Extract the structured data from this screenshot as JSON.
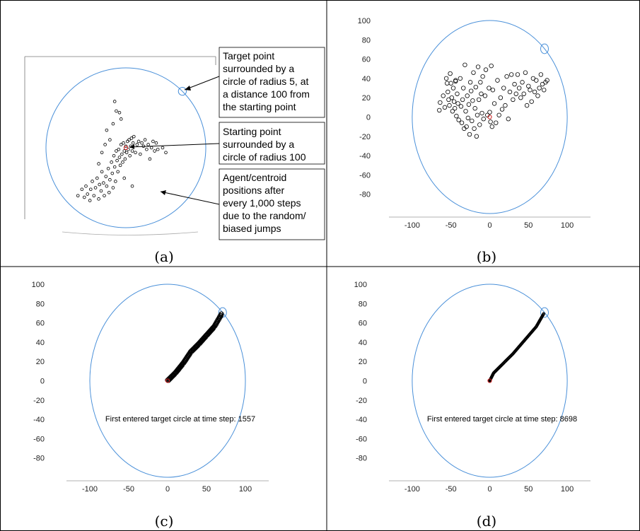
{
  "chart_data": [
    {
      "panel": "a",
      "type": "scatter",
      "caption": "(a)",
      "annotations": [
        {
          "lines": [
            "Target point",
            "surrounded by a",
            "circle of radius 5, at",
            "a distance 100 from",
            "the starting point"
          ]
        },
        {
          "lines": [
            "Starting point",
            "surrounded by a",
            "circle of radius 100"
          ]
        },
        {
          "lines": [
            "Agent/centroid",
            "positions after",
            "every 1,000 steps",
            "due to the random/",
            "biased jumps"
          ]
        }
      ],
      "start_circle": {
        "center": [
          0,
          0
        ],
        "radius": 100
      },
      "target_circle": {
        "center": [
          70.7,
          70.7
        ],
        "radius": 5
      },
      "points": [
        [
          -60,
          -60
        ],
        [
          -55,
          -52
        ],
        [
          -52,
          -62
        ],
        [
          -50,
          -48
        ],
        [
          -48,
          -58
        ],
        [
          -45,
          -66
        ],
        [
          -44,
          -52
        ],
        [
          -42,
          -42
        ],
        [
          -40,
          -60
        ],
        [
          -38,
          -50
        ],
        [
          -36,
          -38
        ],
        [
          -34,
          -64
        ],
        [
          -33,
          -46
        ],
        [
          -31,
          -54
        ],
        [
          -30,
          -30
        ],
        [
          -28,
          -44
        ],
        [
          -27,
          -60
        ],
        [
          -25,
          -36
        ],
        [
          -24,
          -48
        ],
        [
          -22,
          -26
        ],
        [
          -21,
          -56
        ],
        [
          -20,
          -40
        ],
        [
          -18,
          -18
        ],
        [
          -17,
          -32
        ],
        [
          -16,
          -50
        ],
        [
          -15,
          -10
        ],
        [
          -14,
          -24
        ],
        [
          -13,
          -42
        ],
        [
          -12,
          -4
        ],
        [
          -11,
          -16
        ],
        [
          -10,
          -30
        ],
        [
          -9,
          -2
        ],
        [
          -8,
          -12
        ],
        [
          -7,
          -22
        ],
        [
          -6,
          4
        ],
        [
          -5,
          -8
        ],
        [
          -4,
          -18
        ],
        [
          -3,
          6
        ],
        [
          -2,
          -4
        ],
        [
          -1,
          -14
        ],
        [
          0,
          2
        ],
        [
          1,
          -6
        ],
        [
          2,
          8
        ],
        [
          3,
          -2
        ],
        [
          4,
          10
        ],
        [
          5,
          -10
        ],
        [
          6,
          2
        ],
        [
          7,
          12
        ],
        [
          8,
          -4
        ],
        [
          9,
          6
        ],
        [
          10,
          14
        ],
        [
          12,
          -6
        ],
        [
          14,
          4
        ],
        [
          16,
          8
        ],
        [
          18,
          -8
        ],
        [
          20,
          6
        ],
        [
          22,
          2
        ],
        [
          24,
          10
        ],
        [
          26,
          -2
        ],
        [
          28,
          4
        ],
        [
          30,
          -14
        ],
        [
          32,
          0
        ],
        [
          34,
          8
        ],
        [
          36,
          -4
        ],
        [
          38,
          6
        ],
        [
          40,
          -2
        ],
        [
          46,
          0
        ],
        [
          50,
          -6
        ],
        [
          -2,
          -38
        ],
        [
          8,
          -48
        ],
        [
          -14,
          58
        ],
        [
          -8,
          44
        ],
        [
          -6,
          36
        ],
        [
          -16,
          30
        ],
        [
          -12,
          46
        ],
        [
          -24,
          22
        ],
        [
          -20,
          10
        ],
        [
          -26,
          4
        ],
        [
          -30,
          -6
        ],
        [
          -34,
          -20
        ]
      ],
      "start_point": [
        0,
        0
      ]
    },
    {
      "panel": "b",
      "type": "scatter",
      "caption": "(b)",
      "xlim": [
        -130,
        130
      ],
      "ylim": [
        -100,
        100
      ],
      "xticks": [
        "-100",
        "-50",
        "0",
        "50",
        "100"
      ],
      "yticks": [
        "100",
        "80",
        "60",
        "40",
        "20",
        "0",
        "-20",
        "-40",
        "-60",
        "-80"
      ],
      "start_circle": {
        "center": [
          0,
          0
        ],
        "radius": 100
      },
      "target_circle": {
        "center": [
          70.7,
          70.7
        ],
        "radius": 5
      },
      "points": [
        [
          -65,
          7
        ],
        [
          -64,
          15
        ],
        [
          -60,
          22
        ],
        [
          -58,
          10
        ],
        [
          -56,
          40
        ],
        [
          -55,
          35
        ],
        [
          -54,
          26
        ],
        [
          -53,
          18
        ],
        [
          -52,
          12
        ],
        [
          -51,
          45
        ],
        [
          -50,
          35
        ],
        [
          -49,
          20
        ],
        [
          -48,
          6
        ],
        [
          -47,
          30
        ],
        [
          -46,
          16
        ],
        [
          -45,
          9
        ],
        [
          -44,
          38
        ],
        [
          -43,
          1
        ],
        [
          -42,
          24
        ],
        [
          -41,
          14
        ],
        [
          -40,
          -3
        ],
        [
          -38,
          40
        ],
        [
          -37,
          11
        ],
        [
          -36,
          -6
        ],
        [
          -35,
          18
        ],
        [
          -34,
          30
        ],
        [
          -33,
          -12
        ],
        [
          -32,
          54
        ],
        [
          -31,
          6
        ],
        [
          -30,
          -10
        ],
        [
          -29,
          22
        ],
        [
          -28,
          -1
        ],
        [
          -27,
          13
        ],
        [
          -26,
          -18
        ],
        [
          -25,
          36
        ],
        [
          -24,
          27
        ],
        [
          -23,
          -4
        ],
        [
          -22,
          17
        ],
        [
          -21,
          46
        ],
        [
          -20,
          -12
        ],
        [
          -19,
          9
        ],
        [
          -18,
          31
        ],
        [
          -17,
          -20
        ],
        [
          -16,
          2
        ],
        [
          -15,
          52
        ],
        [
          -14,
          18
        ],
        [
          -13,
          -8
        ],
        [
          -12,
          36
        ],
        [
          -11,
          24
        ],
        [
          -10,
          4
        ],
        [
          -9,
          42
        ],
        [
          -8,
          -2
        ],
        [
          -6,
          22
        ],
        [
          -5,
          49
        ],
        [
          -3,
          2
        ],
        [
          -1,
          30
        ],
        [
          0,
          5
        ],
        [
          1,
          -5
        ],
        [
          2,
          53
        ],
        [
          3,
          -10
        ],
        [
          4,
          28
        ],
        [
          6,
          14
        ],
        [
          8,
          -6
        ],
        [
          10,
          38
        ],
        [
          12,
          2
        ],
        [
          14,
          20
        ],
        [
          16,
          8
        ],
        [
          18,
          30
        ],
        [
          20,
          12
        ],
        [
          22,
          42
        ],
        [
          24,
          -2
        ],
        [
          26,
          26
        ],
        [
          28,
          44
        ],
        [
          30,
          18
        ],
        [
          32,
          34
        ],
        [
          34,
          24
        ],
        [
          36,
          44
        ],
        [
          38,
          30
        ],
        [
          40,
          20
        ],
        [
          42,
          36
        ],
        [
          44,
          24
        ],
        [
          46,
          46
        ],
        [
          48,
          12
        ],
        [
          50,
          32
        ],
        [
          52,
          28
        ],
        [
          54,
          16
        ],
        [
          56,
          40
        ],
        [
          58,
          26
        ],
        [
          60,
          38
        ],
        [
          62,
          22
        ],
        [
          64,
          30
        ],
        [
          66,
          44
        ],
        [
          68,
          34
        ],
        [
          70,
          28
        ],
        [
          72,
          36
        ],
        [
          74,
          38
        ],
        [
          -44,
          37
        ]
      ],
      "start_point": [
        0,
        0
      ]
    },
    {
      "panel": "c",
      "type": "scatter",
      "caption": "(c)",
      "status_text": "First entered target circle at time step: 1557",
      "xlim": [
        -130,
        130
      ],
      "ylim": [
        -100,
        100
      ],
      "xticks": [
        "-100",
        "-50",
        "0",
        "50",
        "100"
      ],
      "yticks": [
        "100",
        "80",
        "60",
        "40",
        "20",
        "0",
        "-20",
        "-40",
        "-60",
        "-80"
      ],
      "start_circle": {
        "center": [
          0,
          0
        ],
        "radius": 100
      },
      "target_circle": {
        "center": [
          70.7,
          70.7
        ],
        "radius": 5
      },
      "path": [
        [
          0,
          0
        ],
        [
          10,
          8
        ],
        [
          20,
          18
        ],
        [
          30,
          30
        ],
        [
          40,
          38
        ],
        [
          50,
          47
        ],
        [
          60,
          56
        ],
        [
          70,
          70
        ]
      ],
      "start_point": [
        0,
        0
      ]
    },
    {
      "panel": "d",
      "type": "scatter",
      "caption": "(d)",
      "status_text": "First entered target circle at time step: 8698",
      "xlim": [
        -130,
        130
      ],
      "ylim": [
        -100,
        100
      ],
      "xticks": [
        "-100",
        "-50",
        "0",
        "50",
        "100"
      ],
      "yticks": [
        "100",
        "80",
        "60",
        "40",
        "20",
        "0",
        "-20",
        "-40",
        "-60",
        "-80"
      ],
      "start_circle": {
        "center": [
          0,
          0
        ],
        "radius": 100
      },
      "target_circle": {
        "center": [
          70.7,
          70.7
        ],
        "radius": 5
      },
      "path": [
        [
          0,
          0
        ],
        [
          5,
          8
        ],
        [
          15,
          16
        ],
        [
          30,
          28
        ],
        [
          45,
          42
        ],
        [
          60,
          56
        ],
        [
          70,
          70
        ]
      ],
      "start_point": [
        0,
        0
      ]
    }
  ]
}
